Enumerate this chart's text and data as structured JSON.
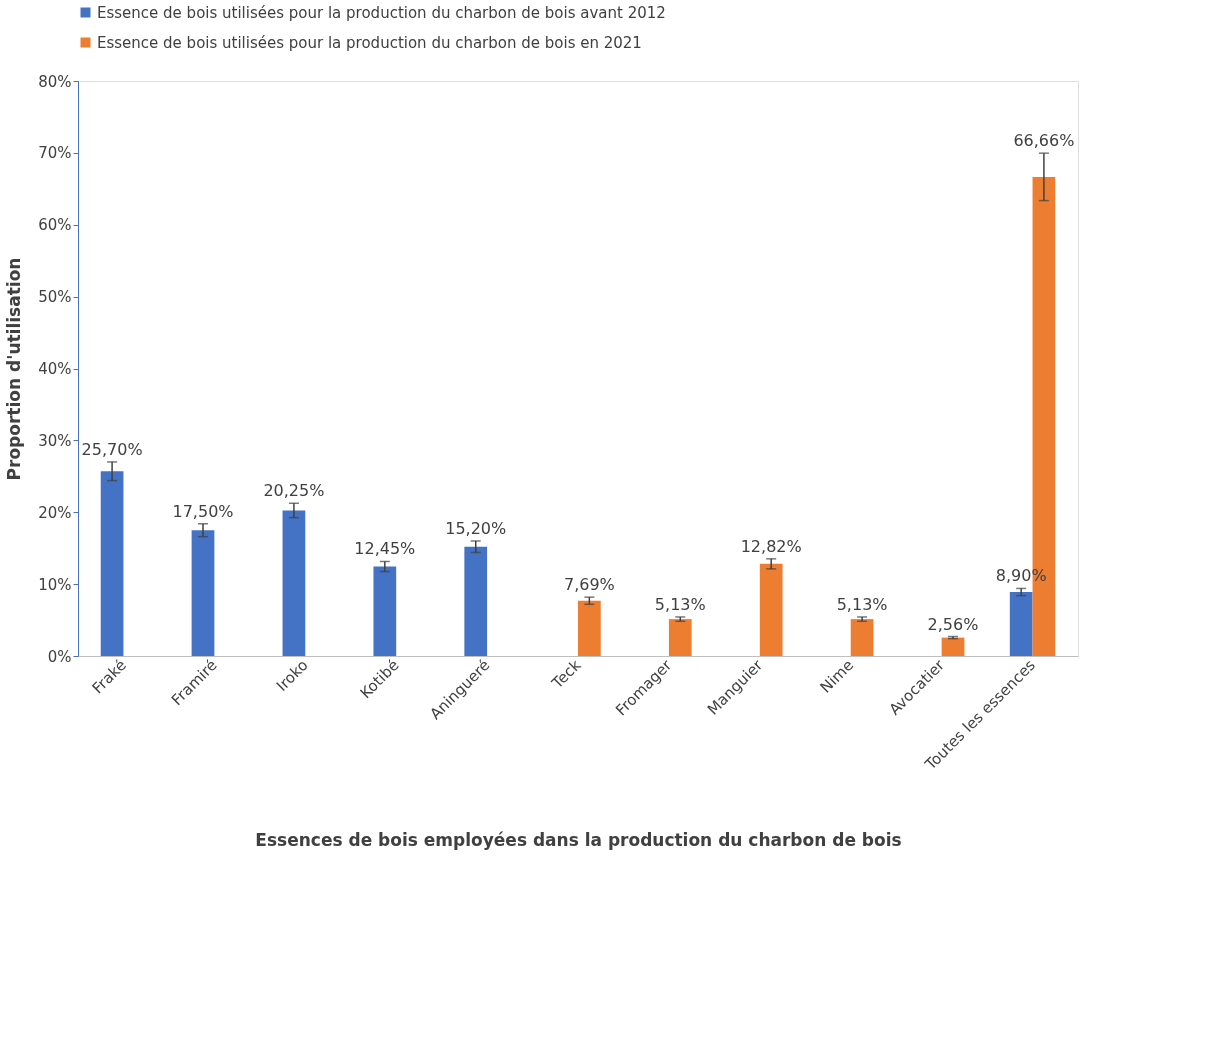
{
  "chart_data": {
    "type": "bar",
    "xlabel": "Essences de bois employées dans la production du charbon de bois",
    "ylabel": "Proportion d'utilisation",
    "categories": [
      "Fraké",
      "Framiré",
      "Iroko",
      "Kotibé",
      "Aningueré",
      "Teck",
      "Fromager",
      "Manguier",
      "Nime",
      "Avocatier",
      "Toutes les essences"
    ],
    "series": [
      {
        "name": "Essence de bois utilisées pour la production du charbon de bois avant 2012",
        "color": "#4472c4",
        "values": [
          25.7,
          17.5,
          20.25,
          12.45,
          15.2,
          null,
          null,
          null,
          null,
          null,
          8.9
        ],
        "errors": [
          1.3,
          0.9,
          1.0,
          0.7,
          0.8,
          null,
          null,
          null,
          null,
          null,
          0.5
        ],
        "value_labels": [
          "25,70%",
          "17,50%",
          "20,25%",
          "12,45%",
          "15,20%",
          null,
          null,
          null,
          null,
          null,
          "8,90%"
        ]
      },
      {
        "name": "Essence de bois utilisées pour la production du charbon de bois en 2021",
        "color": "#ed7d31",
        "values": [
          null,
          null,
          null,
          null,
          null,
          7.69,
          5.13,
          12.82,
          5.13,
          2.56,
          66.66
        ],
        "errors": [
          null,
          null,
          null,
          null,
          null,
          0.5,
          0.3,
          0.7,
          0.3,
          0.15,
          3.3
        ],
        "value_labels": [
          null,
          null,
          null,
          null,
          null,
          "7,69%",
          "5,13%",
          "12,82%",
          "5,13%",
          "2,56%",
          "66,66%"
        ]
      }
    ],
    "ylim": [
      0,
      80
    ],
    "yticks": [
      {
        "value": 0,
        "label": "0%"
      },
      {
        "value": 10,
        "label": "10%"
      },
      {
        "value": 20,
        "label": "20%"
      },
      {
        "value": 30,
        "label": "30%"
      },
      {
        "value": 40,
        "label": "40%"
      },
      {
        "value": 50,
        "label": "50%"
      },
      {
        "value": 60,
        "label": "60%"
      },
      {
        "value": 70,
        "label": "70%"
      },
      {
        "value": 80,
        "label": "80%"
      }
    ],
    "grid": false,
    "legend": "top"
  }
}
